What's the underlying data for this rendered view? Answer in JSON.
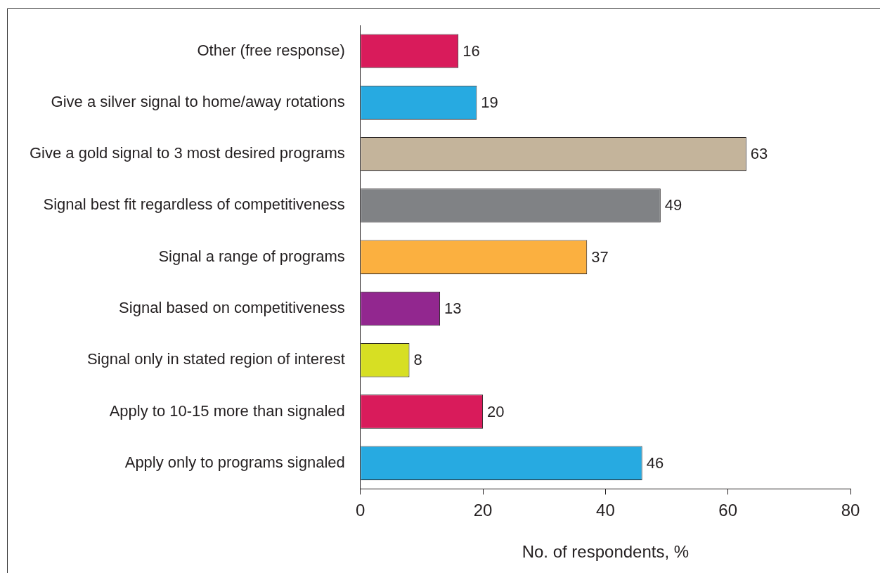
{
  "chart_data": {
    "type": "bar",
    "orientation": "horizontal",
    "xlabel": "No. of respondents, %",
    "categories": [
      "Other (free response)",
      "Give a silver signal to home/away rotations",
      "Give a gold signal to 3 most desired programs",
      "Signal best fit regardless of competitiveness",
      "Signal a range of programs",
      "Signal based on competitiveness",
      "Signal only in stated region of interest",
      "Apply to 10-15 more than signaled",
      "Apply only to programs signaled"
    ],
    "values": [
      16,
      19,
      63,
      49,
      37,
      13,
      8,
      20,
      46
    ],
    "colors": [
      "#d91b5b",
      "#27aae1",
      "#c4b49b",
      "#808285",
      "#fbb040",
      "#92278f",
      "#d7df23",
      "#d91b5b",
      "#27aae1"
    ],
    "xlim": [
      0,
      80
    ],
    "xticks": [
      0,
      20,
      40,
      60,
      80
    ],
    "grid": false,
    "data_labels": true
  }
}
